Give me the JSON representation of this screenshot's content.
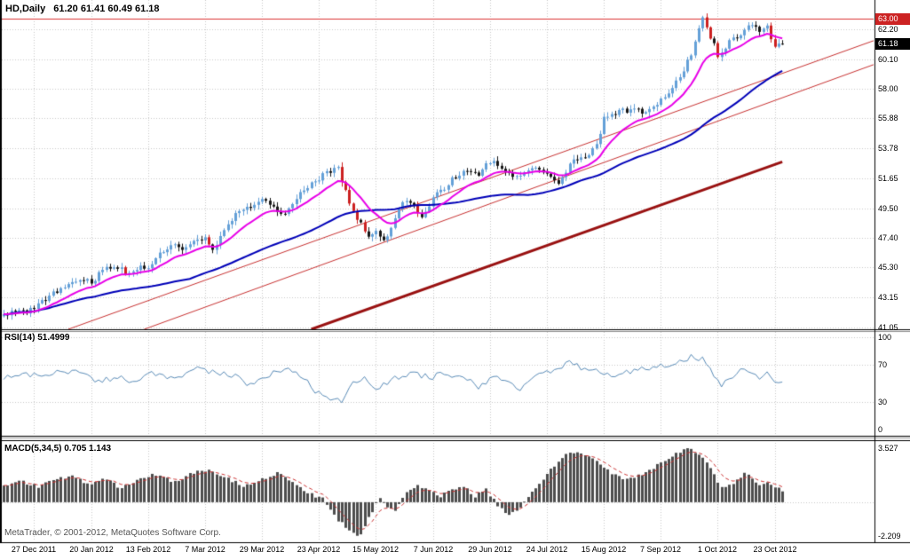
{
  "window": {
    "symbol_timeframe": "HD,Daily",
    "ohlc_text": "61.20 61.41 60.49 61.18"
  },
  "footer": {
    "watermark": "MetaTrader, © 2001-2012, MetaQuotes Software Corp."
  },
  "main_panel": {
    "price_labels": [
      {
        "label": "62.20",
        "value": 62.2
      },
      {
        "label": "60.10",
        "value": 60.1
      },
      {
        "label": "58.00",
        "value": 58.0
      },
      {
        "label": "55.88",
        "value": 55.88
      },
      {
        "label": "53.78",
        "value": 53.78
      },
      {
        "label": "51.65",
        "value": 51.65
      },
      {
        "label": "49.50",
        "value": 49.5
      },
      {
        "label": "47.40",
        "value": 47.4
      },
      {
        "label": "45.30",
        "value": 45.3
      },
      {
        "label": "43.15",
        "value": 43.15
      },
      {
        "label": "41.05",
        "value": 41.05
      }
    ],
    "hline_badge": {
      "label": "63.00",
      "value": 63.0,
      "color": "#cc2222"
    },
    "last_price_badge": {
      "label": "61.18",
      "value": 61.18,
      "color": "#000000"
    }
  },
  "rsi_panel": {
    "label": "RSI(14) 51.4999",
    "levels": [
      {
        "label": "100",
        "value": 100
      },
      {
        "label": "70",
        "value": 70
      },
      {
        "label": "30",
        "value": 30
      },
      {
        "label": "0",
        "value": 0
      }
    ]
  },
  "macd_panel": {
    "label": "MACD(5,34,5) 0.705 1.143",
    "levels": [
      {
        "label": "3.527",
        "value": 3.527
      },
      {
        "label": "-2.209",
        "value": -2.209
      }
    ]
  },
  "date_axis": {
    "ticks": [
      {
        "label": "27 Dec 2011",
        "index": 8
      },
      {
        "label": "20 Jan 2012",
        "index": 23
      },
      {
        "label": "13 Feb 2012",
        "index": 38
      },
      {
        "label": "7 Mar 2012",
        "index": 53
      },
      {
        "label": "29 Mar 2012",
        "index": 68
      },
      {
        "label": "23 Apr 2012",
        "index": 83
      },
      {
        "label": "15 May 2012",
        "index": 98
      },
      {
        "label": "7 Jun 2012",
        "index": 113
      },
      {
        "label": "29 Jun 2012",
        "index": 128
      },
      {
        "label": "24 Jul 2012",
        "index": 143
      },
      {
        "label": "15 Aug 2012",
        "index": 158
      },
      {
        "label": "7 Sep 2012",
        "index": 173
      },
      {
        "label": "1 Oct 2012",
        "index": 188
      },
      {
        "label": "23 Oct 2012",
        "index": 203
      }
    ]
  },
  "chart_data": {
    "type": "candlestick",
    "title": "HD,Daily",
    "symbol": "HD",
    "timeframe": "Daily",
    "quote": {
      "open": 61.2,
      "high": 61.41,
      "low": 60.49,
      "close": 61.18
    },
    "num_bars": 206,
    "price_range": [
      40.9,
      64.3
    ],
    "close_path": [
      [
        0,
        41.8
      ],
      [
        3,
        42.3
      ],
      [
        6,
        42.0
      ],
      [
        10,
        42.9
      ],
      [
        13,
        43.5
      ],
      [
        17,
        43.9
      ],
      [
        20,
        44.5
      ],
      [
        23,
        44.3
      ],
      [
        26,
        45.0
      ],
      [
        29,
        45.5
      ],
      [
        32,
        44.9
      ],
      [
        35,
        45.2
      ],
      [
        38,
        45.4
      ],
      [
        41,
        46.3
      ],
      [
        44,
        46.9
      ],
      [
        47,
        46.4
      ],
      [
        50,
        47.2
      ],
      [
        53,
        47.3
      ],
      [
        55,
        46.5
      ],
      [
        58,
        48.0
      ],
      [
        61,
        49.0
      ],
      [
        64,
        49.6
      ],
      [
        68,
        50.0
      ],
      [
        71,
        49.6
      ],
      [
        74,
        49.1
      ],
      [
        77,
        50.3
      ],
      [
        80,
        51.0
      ],
      [
        83,
        51.6
      ],
      [
        86,
        52.2
      ],
      [
        88,
        52.5
      ],
      [
        90,
        50.6
      ],
      [
        93,
        48.8
      ],
      [
        96,
        47.6
      ],
      [
        98,
        47.9
      ],
      [
        100,
        47.1
      ],
      [
        102,
        48.3
      ],
      [
        104,
        49.6
      ],
      [
        107,
        50.0
      ],
      [
        110,
        48.8
      ],
      [
        113,
        50.3
      ],
      [
        116,
        50.9
      ],
      [
        118,
        51.5
      ],
      [
        122,
        52.2
      ],
      [
        125,
        51.7
      ],
      [
        128,
        52.9
      ],
      [
        131,
        52.3
      ],
      [
        135,
        51.6
      ],
      [
        139,
        52.5
      ],
      [
        143,
        51.9
      ],
      [
        146,
        51.2
      ],
      [
        150,
        52.9
      ],
      [
        154,
        53.4
      ],
      [
        156,
        54.1
      ],
      [
        158,
        55.8
      ],
      [
        162,
        56.3
      ],
      [
        166,
        56.6
      ],
      [
        169,
        56.2
      ],
      [
        173,
        57.2
      ],
      [
        176,
        58.0
      ],
      [
        179,
        59.2
      ],
      [
        181,
        60.5
      ],
      [
        183,
        62.2
      ],
      [
        184,
        63.0
      ],
      [
        186,
        61.7
      ],
      [
        188,
        60.4
      ],
      [
        190,
        61.0
      ],
      [
        192,
        61.6
      ],
      [
        194,
        61.9
      ],
      [
        196,
        62.5
      ],
      [
        198,
        62.2
      ],
      [
        201,
        62.3
      ],
      [
        203,
        60.8
      ],
      [
        205,
        61.18
      ]
    ],
    "moving_averages": [
      {
        "name": "fast",
        "type": "EMA",
        "period": 13,
        "color": "#e800e8",
        "width": 2
      },
      {
        "name": "slow",
        "type": "SMA",
        "period": 50,
        "color": "#0000b8",
        "width": 2
      }
    ],
    "trendlines": [
      {
        "from": [
          17,
          40.9
        ],
        "to": [
          230,
          61.5
        ],
        "color": "#c83232",
        "width": 1
      },
      {
        "from": [
          37,
          40.9
        ],
        "to": [
          230,
          59.8
        ],
        "color": "#c83232",
        "width": 1
      },
      {
        "from": [
          81,
          40.9
        ],
        "to": [
          205,
          52.8
        ],
        "color": "#991111",
        "width": 3
      }
    ],
    "hline": {
      "value": 63.0,
      "color": "#dd3333",
      "width": 1
    },
    "rsi": {
      "name": "RSI",
      "period": 14,
      "current": 51.4999,
      "range": [
        0,
        100
      ],
      "grid_levels": [
        100,
        70,
        30
      ],
      "color": "#5a8cb8",
      "path": [
        [
          0,
          55
        ],
        [
          5,
          60
        ],
        [
          11,
          58
        ],
        [
          16,
          64
        ],
        [
          21,
          60
        ],
        [
          25,
          52
        ],
        [
          30,
          57
        ],
        [
          34,
          50
        ],
        [
          39,
          62
        ],
        [
          45,
          55
        ],
        [
          50,
          66
        ],
        [
          55,
          62
        ],
        [
          61,
          58
        ],
        [
          64,
          48
        ],
        [
          70,
          60
        ],
        [
          75,
          66
        ],
        [
          79,
          55
        ],
        [
          82,
          42
        ],
        [
          86,
          34
        ],
        [
          89,
          31
        ],
        [
          92,
          52
        ],
        [
          95,
          56
        ],
        [
          98,
          44
        ],
        [
          102,
          54
        ],
        [
          107,
          60
        ],
        [
          113,
          57
        ],
        [
          116,
          62
        ],
        [
          122,
          54
        ],
        [
          125,
          46
        ],
        [
          130,
          58
        ],
        [
          133,
          51
        ],
        [
          136,
          44
        ],
        [
          140,
          60
        ],
        [
          145,
          64
        ],
        [
          149,
          72
        ],
        [
          153,
          66
        ],
        [
          157,
          62
        ],
        [
          160,
          58
        ],
        [
          164,
          62
        ],
        [
          167,
          65
        ],
        [
          171,
          68
        ],
        [
          175,
          71
        ],
        [
          178,
          74
        ],
        [
          181,
          79
        ],
        [
          184,
          76
        ],
        [
          187,
          60
        ],
        [
          189,
          48
        ],
        [
          192,
          57
        ],
        [
          195,
          66
        ],
        [
          197,
          60
        ],
        [
          199,
          55
        ],
        [
          201,
          62
        ],
        [
          203,
          50
        ],
        [
          205,
          51.5
        ]
      ]
    },
    "macd": {
      "name": "MACD",
      "params": "5,34,5",
      "current_macd": 0.705,
      "current_signal": 1.143,
      "range": [
        -2.209,
        3.527
      ],
      "bar_color": "#4d4d4d",
      "signal_color": "#cc3333",
      "hist_path": [
        [
          0,
          1.1
        ],
        [
          4,
          1.4
        ],
        [
          9,
          1.0
        ],
        [
          13,
          1.5
        ],
        [
          18,
          1.7
        ],
        [
          22,
          1.2
        ],
        [
          27,
          1.5
        ],
        [
          31,
          0.9
        ],
        [
          36,
          1.6
        ],
        [
          40,
          1.8
        ],
        [
          45,
          1.3
        ],
        [
          49,
          1.9
        ],
        [
          54,
          2.1
        ],
        [
          58,
          1.6
        ],
        [
          63,
          1.1
        ],
        [
          67,
          1.4
        ],
        [
          72,
          1.9
        ],
        [
          76,
          1.4
        ],
        [
          80,
          0.6
        ],
        [
          84,
          0.2
        ],
        [
          87,
          -0.9
        ],
        [
          91,
          -1.9
        ],
        [
          94,
          -2.2
        ],
        [
          96,
          -1.0
        ],
        [
          99,
          0.3
        ],
        [
          101,
          -0.4
        ],
        [
          103,
          -0.6
        ],
        [
          106,
          0.7
        ],
        [
          109,
          1.1
        ],
        [
          112,
          0.8
        ],
        [
          115,
          0.4
        ],
        [
          118,
          0.8
        ],
        [
          121,
          1.0
        ],
        [
          124,
          0.4
        ],
        [
          127,
          0.8
        ],
        [
          130,
          -0.2
        ],
        [
          133,
          -0.9
        ],
        [
          136,
          -0.4
        ],
        [
          139,
          0.7
        ],
        [
          142,
          1.5
        ],
        [
          145,
          2.4
        ],
        [
          148,
          3.1
        ],
        [
          151,
          3.3
        ],
        [
          154,
          3.0
        ],
        [
          157,
          2.5
        ],
        [
          160,
          1.9
        ],
        [
          163,
          1.5
        ],
        [
          166,
          1.6
        ],
        [
          169,
          2.0
        ],
        [
          172,
          2.4
        ],
        [
          175,
          2.9
        ],
        [
          178,
          3.3
        ],
        [
          181,
          3.5
        ],
        [
          183,
          3.1
        ],
        [
          186,
          2.3
        ],
        [
          189,
          0.9
        ],
        [
          192,
          1.2
        ],
        [
          195,
          1.9
        ],
        [
          197,
          1.6
        ],
        [
          199,
          1.1
        ],
        [
          201,
          1.4
        ],
        [
          203,
          1.0
        ],
        [
          205,
          0.705
        ]
      ]
    },
    "colors": {
      "bull_candle": "#64a0d8",
      "bear_candle": "#151515",
      "bear_strong_candle": "#cc2020",
      "grid": "#c9c9c9",
      "background": "#ffffff"
    }
  }
}
